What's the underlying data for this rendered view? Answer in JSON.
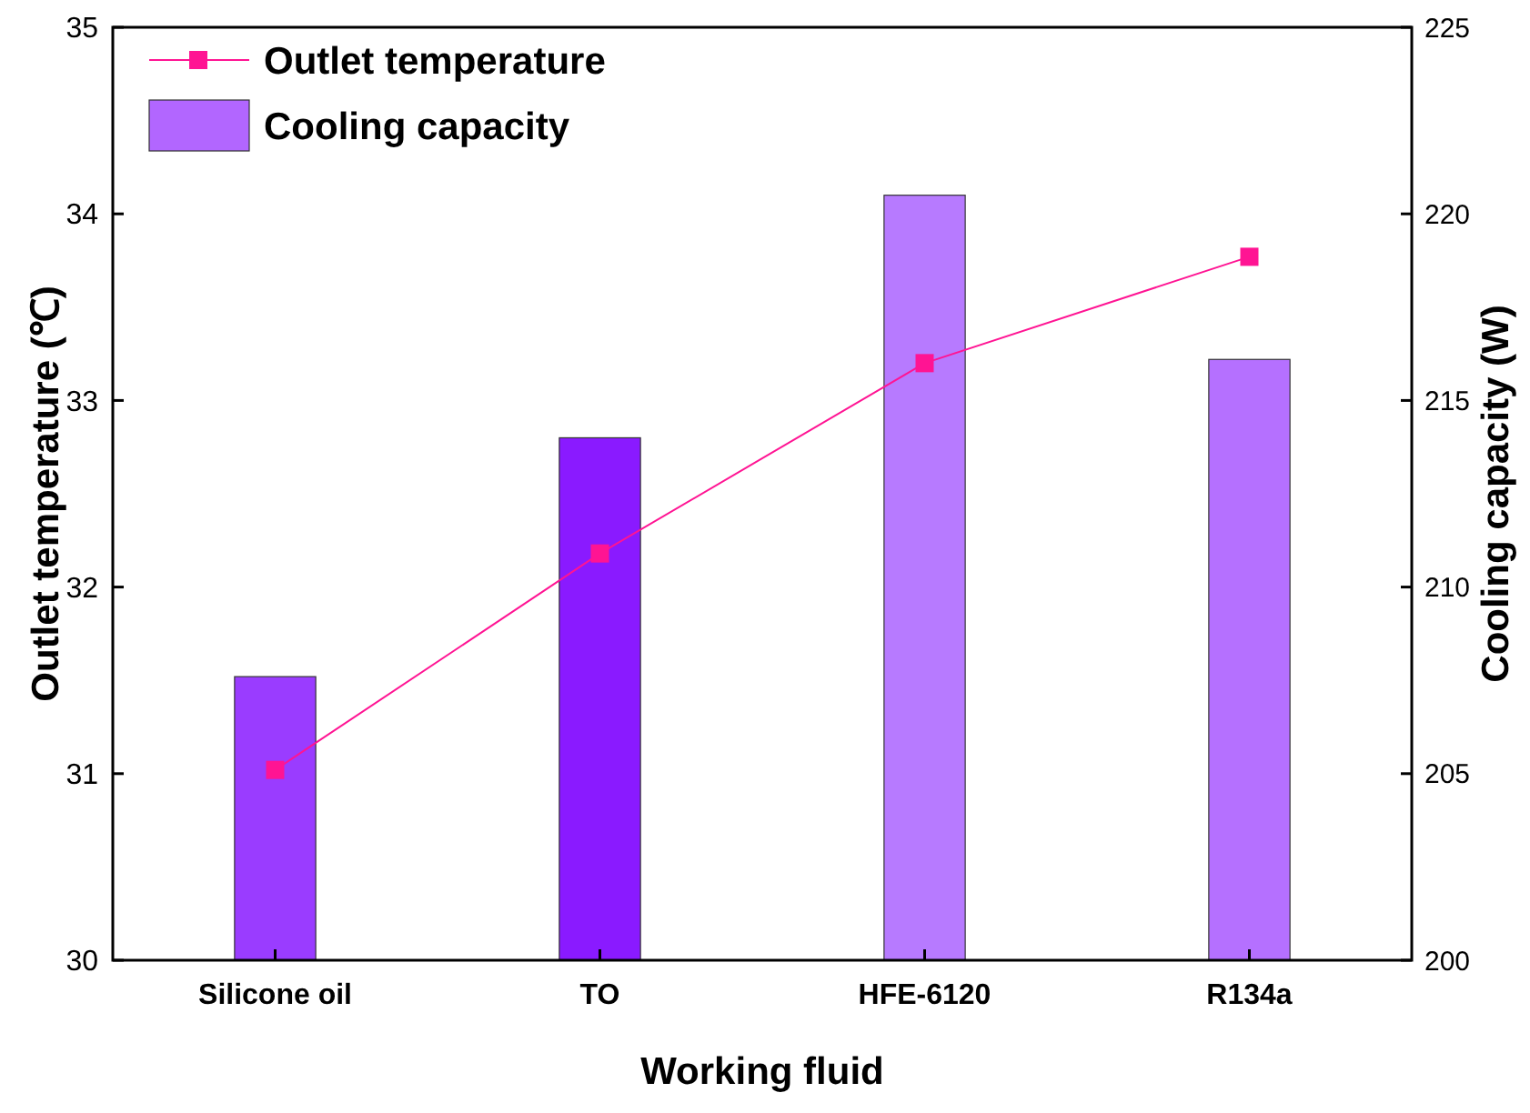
{
  "chart_data": {
    "type": "bar",
    "xlabel": "Working fluid",
    "ylabel": "Outlet temperature (℃)",
    "y2label": "Cooling capacity (W)",
    "categories": [
      "Silicone oil",
      "TO",
      "HFE-6120",
      "R134a"
    ],
    "series": [
      {
        "name": "Outlet temperature",
        "type": "line",
        "color": "#ff1493",
        "values": [
          31.02,
          32.18,
          33.2,
          33.77
        ],
        "marker": "square",
        "axis": "y"
      },
      {
        "name": "Cooling capacity",
        "color": "#b266ff",
        "colors": [
          "#9a3cff",
          "#8a1aff",
          "#b77aff",
          "#b570ff"
        ],
        "values": [
          207.6,
          214,
          220.5,
          216.1
        ],
        "axis": "y2"
      }
    ],
    "ylim": [
      30,
      35
    ],
    "yticks": [
      30,
      31,
      32,
      33,
      34,
      35
    ],
    "y2lim": [
      200,
      225
    ],
    "y2ticks": [
      200,
      205,
      210,
      215,
      220,
      225
    ],
    "legend": "top left",
    "grid": false
  }
}
